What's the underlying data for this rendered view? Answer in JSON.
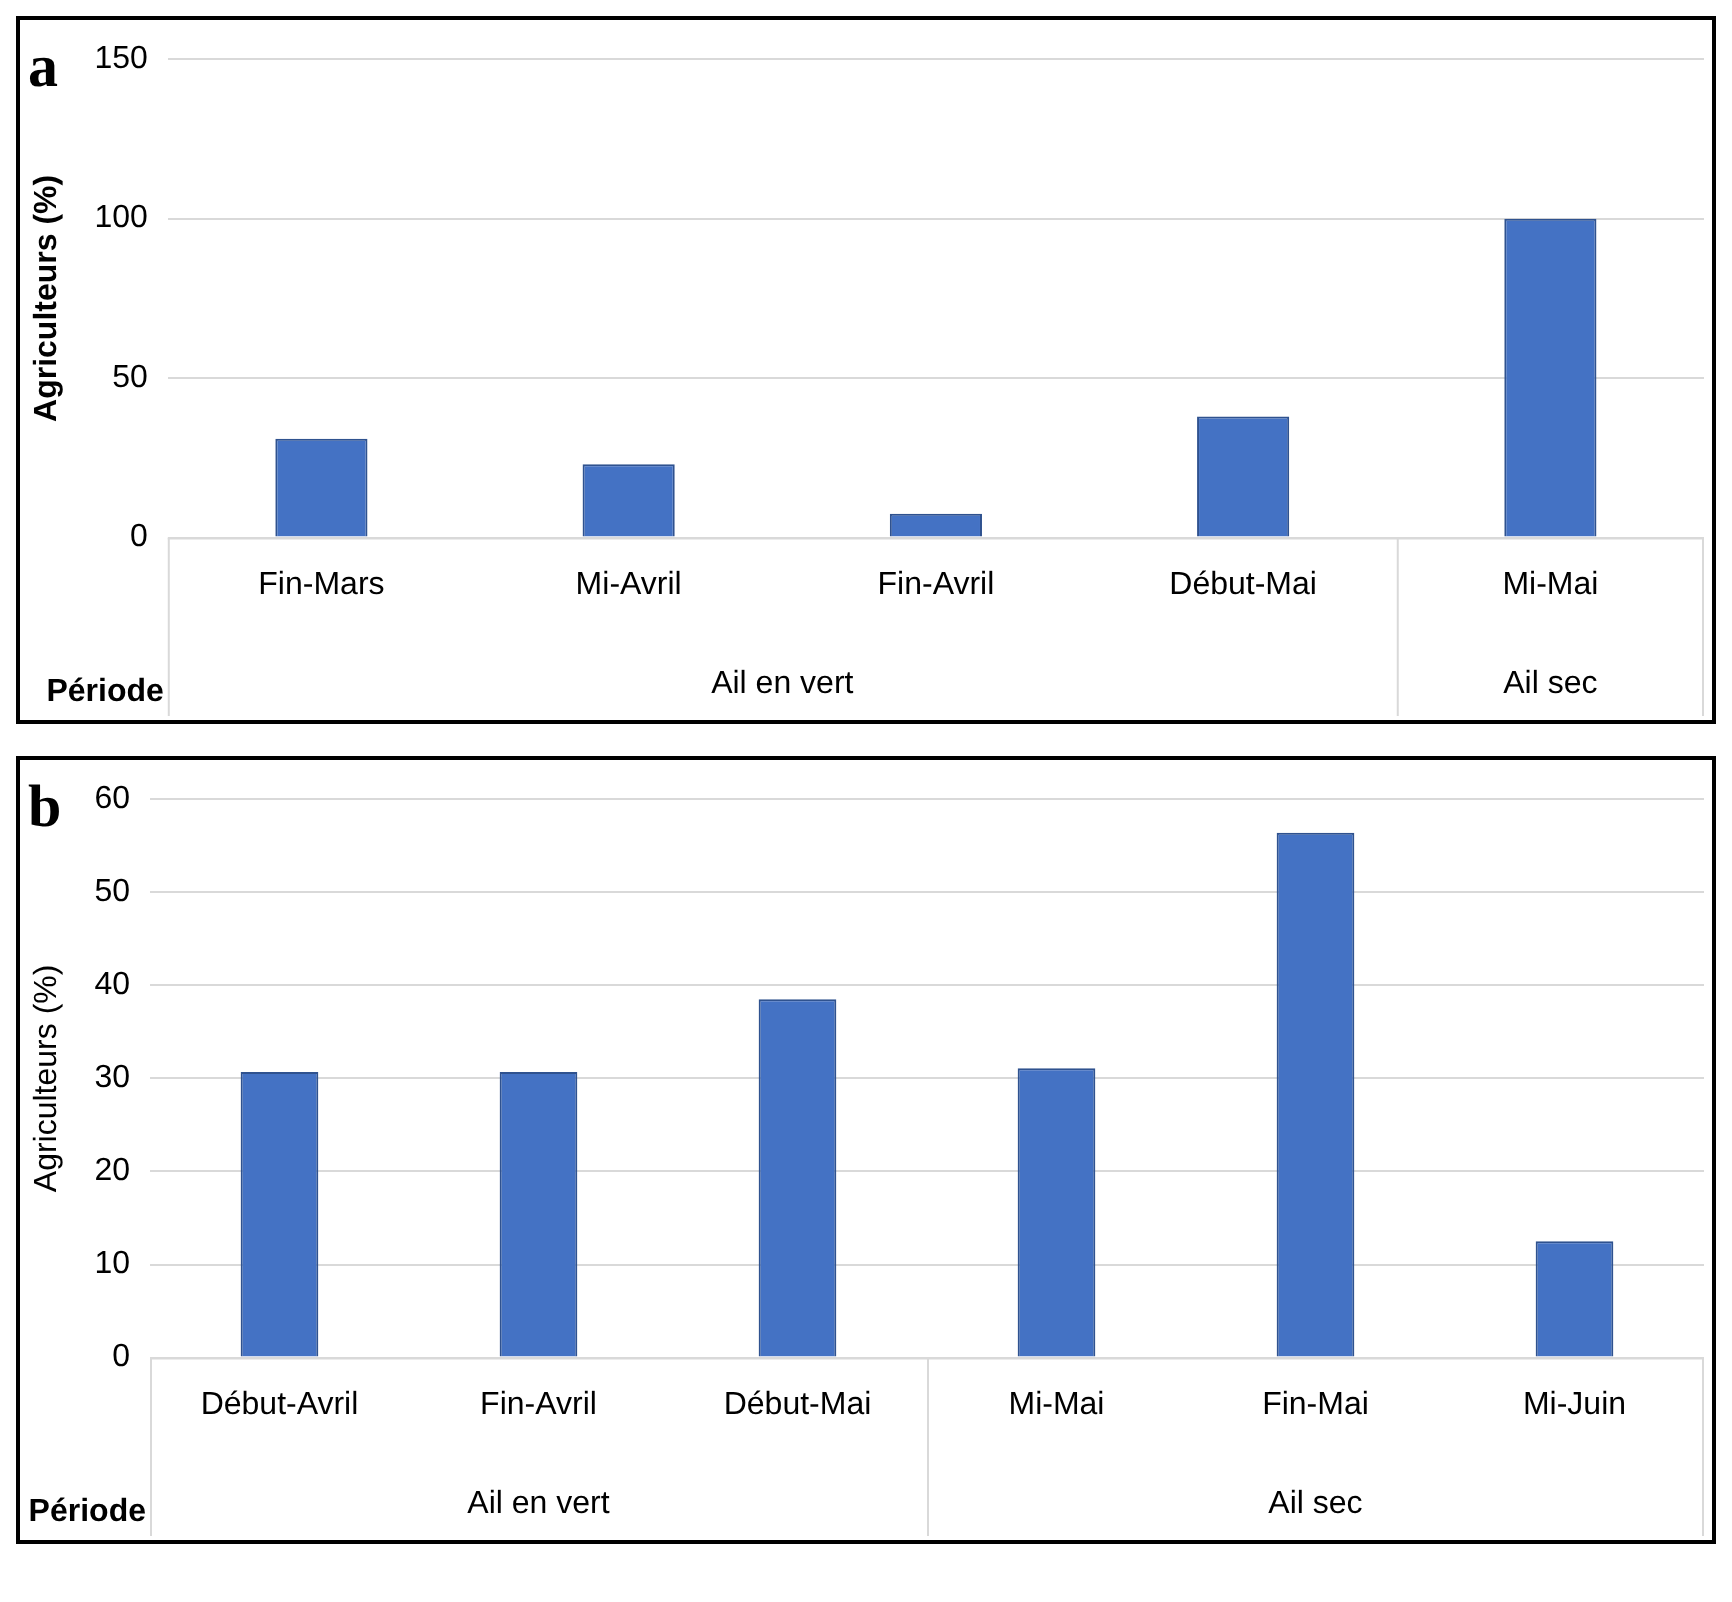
{
  "chart_data": [
    {
      "type": "bar",
      "title": "a",
      "ylabel": "Agriculteurs (%)",
      "xlabel": "Période",
      "categories": [
        "Fin-Mars",
        "Mi-Avril",
        "Fin-Avril",
        "Début-Mai",
        "Mi-Mai"
      ],
      "values": [
        31,
        23,
        7.5,
        38,
        100
      ],
      "color": "#4472c4",
      "ylim": [
        0,
        150
      ],
      "yticks": [
        0,
        50,
        100,
        150
      ],
      "grid": "y",
      "annotations": [
        "Ail en vert",
        "Ail sec"
      ]
    },
    {
      "type": "bar",
      "title": "b",
      "ylabel": "Agriculteurs (%)",
      "xlabel": "Période",
      "categories": [
        "Début-Avril",
        "Fin-Avril",
        "Début-Mai",
        "Mi-Mai",
        "Fin-Mai",
        "Mi-Juin"
      ],
      "values": [
        30.7,
        30.7,
        38.5,
        31.1,
        56.4,
        12.5
      ],
      "color": "#4472c4",
      "ylim": [
        0,
        60
      ],
      "yticks": [
        0,
        10,
        20,
        30,
        40,
        50,
        60
      ],
      "grid": "y",
      "annotations": [
        "Ail en vert",
        "Ail sec"
      ]
    }
  ]
}
